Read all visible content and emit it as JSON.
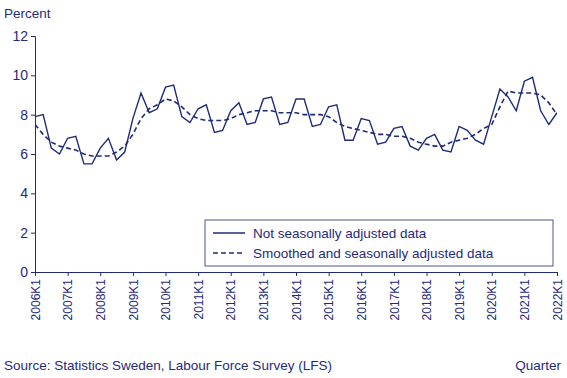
{
  "chart_data": {
    "type": "line",
    "ylabel": "Percent",
    "xlabel": "Quarter",
    "source": "Source: Statistics Sweden, Labour Force Survey (LFS)",
    "categories": [
      "2006K1",
      null,
      null,
      null,
      "2007K1",
      null,
      null,
      null,
      "2008K1",
      null,
      null,
      null,
      "2009K1",
      null,
      null,
      null,
      "2010K1",
      null,
      null,
      null,
      "2011K1",
      null,
      null,
      null,
      "2012K1",
      null,
      null,
      null,
      "2013K1",
      null,
      null,
      null,
      "2014K1",
      null,
      null,
      null,
      "2015K1",
      null,
      null,
      null,
      "2016K1",
      null,
      null,
      null,
      "2017K1",
      null,
      null,
      null,
      "2018K1",
      null,
      null,
      null,
      "2019K1",
      null,
      null,
      null,
      "2020K1",
      null,
      null,
      null,
      "2021K1",
      null,
      null,
      null,
      "2022K1"
    ],
    "series": [
      {
        "name": "Not seasonally adjusted data",
        "color": "#1f2b78",
        "line_style": "solid",
        "values": [
          7.9,
          8.0,
          6.3,
          6.0,
          6.8,
          6.9,
          5.5,
          5.5,
          6.3,
          6.8,
          5.7,
          6.1,
          7.8,
          9.1,
          8.1,
          8.3,
          9.4,
          9.5,
          7.9,
          7.6,
          8.3,
          8.5,
          7.1,
          7.2,
          8.2,
          8.6,
          7.5,
          7.6,
          8.8,
          8.9,
          7.5,
          7.6,
          8.8,
          8.8,
          7.4,
          7.5,
          8.4,
          8.5,
          6.7,
          6.7,
          7.8,
          7.7,
          6.5,
          6.6,
          7.3,
          7.4,
          6.4,
          6.2,
          6.8,
          7.0,
          6.2,
          6.1,
          7.4,
          7.2,
          6.7,
          6.5,
          7.9,
          9.3,
          8.9,
          8.2,
          9.7,
          9.9,
          8.2,
          7.5,
          8.1
        ]
      },
      {
        "name": "Smoothed and seasonally adjusted data",
        "color": "#1f2b78",
        "line_style": "dashed",
        "values": [
          7.5,
          7.0,
          6.6,
          6.4,
          6.3,
          6.2,
          6.0,
          5.9,
          5.9,
          5.9,
          6.1,
          6.4,
          7.0,
          7.8,
          8.3,
          8.5,
          8.8,
          8.7,
          8.4,
          8.0,
          7.8,
          7.7,
          7.7,
          7.7,
          7.8,
          8.0,
          8.1,
          8.2,
          8.2,
          8.2,
          8.1,
          8.1,
          8.1,
          8.0,
          8.0,
          8.0,
          7.9,
          7.6,
          7.4,
          7.3,
          7.2,
          7.1,
          7.0,
          7.0,
          6.9,
          6.9,
          6.8,
          6.6,
          6.5,
          6.4,
          6.4,
          6.6,
          6.7,
          6.8,
          7.0,
          7.3,
          7.5,
          8.4,
          9.2,
          9.1,
          9.1,
          9.1,
          9.0,
          8.6,
          8.0
        ]
      }
    ],
    "ylim": [
      0,
      12
    ],
    "yticks": [
      0,
      2,
      4,
      6,
      8,
      10,
      12
    ],
    "grid": false,
    "legend": "lower right"
  }
}
